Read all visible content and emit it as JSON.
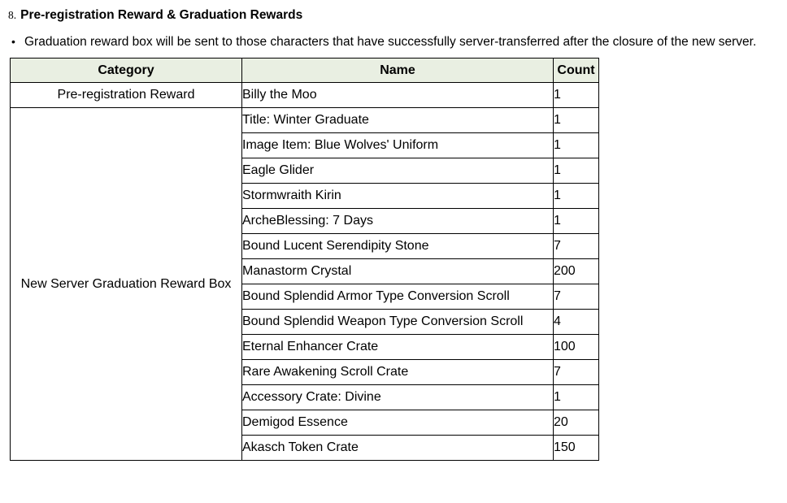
{
  "heading": {
    "number": "8.",
    "title": "Pre-registration Reward & Graduation Rewards"
  },
  "note": {
    "bullet": "•",
    "text": "Graduation reward box will be sent to those characters that have successfully server-transferred after the closure of the new server."
  },
  "table": {
    "columns": [
      "Category",
      "Name",
      "Count"
    ],
    "header_bg": "#e9efe2",
    "border_color": "#000000",
    "groups": [
      {
        "category": "Pre-registration Reward",
        "items": [
          {
            "name": "Billy the Moo",
            "count": "1"
          }
        ]
      },
      {
        "category": "New Server Graduation Reward Box",
        "items": [
          {
            "name": "Title: Winter Graduate",
            "count": "1"
          },
          {
            "name": "Image Item: Blue Wolves' Uniform",
            "count": "1"
          },
          {
            "name": "Eagle Glider",
            "count": "1"
          },
          {
            "name": "Stormwraith Kirin",
            "count": "1"
          },
          {
            "name": "ArcheBlessing: 7 Days",
            "count": "1"
          },
          {
            "name": "Bound Lucent Serendipity Stone",
            "count": "7"
          },
          {
            "name": "Manastorm Crystal",
            "count": "200"
          },
          {
            "name": "Bound Splendid Armor Type Conversion Scroll",
            "count": "7"
          },
          {
            "name": "Bound Splendid Weapon Type Conversion Scroll",
            "count": "4"
          },
          {
            "name": "Eternal Enhancer Crate",
            "count": "100"
          },
          {
            "name": "Rare Awakening Scroll Crate",
            "count": "7"
          },
          {
            "name": "Accessory Crate: Divine",
            "count": "1"
          },
          {
            "name": "Demigod Essence",
            "count": "20"
          },
          {
            "name": "Akasch Token Crate",
            "count": "150"
          }
        ]
      }
    ]
  }
}
